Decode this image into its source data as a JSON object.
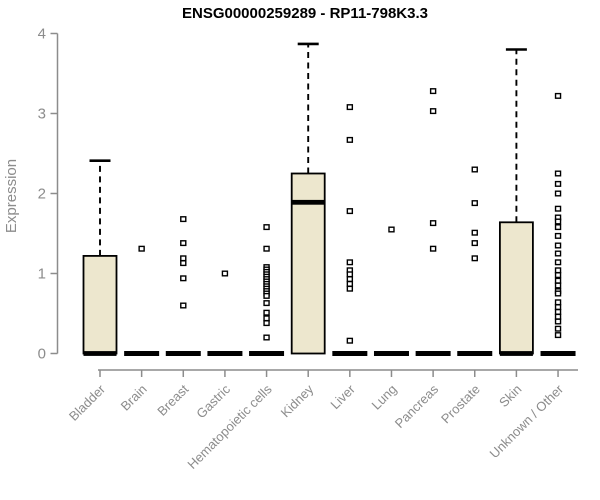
{
  "chart_data": {
    "type": "boxplot",
    "title": "ENSG00000259289 - RP11-798K3.3",
    "ylabel": "Expression",
    "ylim": [
      0,
      4
    ],
    "yticks": [
      0,
      1,
      2,
      3,
      4
    ],
    "grid": false,
    "legend": false,
    "categories": [
      "Bladder",
      "Brain",
      "Breast",
      "Gastric",
      "Hematopoietic cells",
      "Kidney",
      "Liver",
      "Lung",
      "Pancreas",
      "Prostate",
      "Skin",
      "Unknown / Other"
    ],
    "groups": [
      {
        "name": "Bladder",
        "q1": 0,
        "median": 0,
        "q3": 1.22,
        "whisker_low": 0,
        "whisker_high": 2.41,
        "outliers": []
      },
      {
        "name": "Brain",
        "q1": 0,
        "median": 0,
        "q3": 0,
        "whisker_low": 0,
        "whisker_high": 0,
        "outliers": [
          1.31
        ]
      },
      {
        "name": "Breast",
        "q1": 0,
        "median": 0,
        "q3": 0,
        "whisker_low": 0,
        "whisker_high": 0,
        "outliers": [
          1.68,
          1.38,
          1.19,
          1.13,
          0.94,
          0.6
        ]
      },
      {
        "name": "Gastric",
        "q1": 0,
        "median": 0,
        "q3": 0,
        "whisker_low": 0,
        "whisker_high": 0,
        "outliers": [
          1.0
        ]
      },
      {
        "name": "Hematopoietic cells",
        "q1": 0,
        "median": 0,
        "q3": 0,
        "whisker_low": 0,
        "whisker_high": 0,
        "outliers": [
          1.58,
          1.31,
          1.08,
          1.05,
          1.02,
          0.99,
          0.96,
          0.93,
          0.9,
          0.87,
          0.84,
          0.81,
          0.78,
          0.75,
          0.72,
          0.63,
          0.51,
          0.44,
          0.38,
          0.2
        ]
      },
      {
        "name": "Kidney",
        "q1": 0,
        "median": 1.89,
        "q3": 2.25,
        "whisker_low": 0,
        "whisker_high": 3.87,
        "outliers": []
      },
      {
        "name": "Liver",
        "q1": 0,
        "median": 0,
        "q3": 0,
        "whisker_low": 0,
        "whisker_high": 0,
        "outliers": [
          3.08,
          2.67,
          1.78,
          1.14,
          1.04,
          0.99,
          0.93,
          0.87,
          0.81,
          0.16
        ]
      },
      {
        "name": "Lung",
        "q1": 0,
        "median": 0,
        "q3": 0,
        "whisker_low": 0,
        "whisker_high": 0,
        "outliers": [
          1.55
        ]
      },
      {
        "name": "Pancreas",
        "q1": 0,
        "median": 0,
        "q3": 0,
        "whisker_low": 0,
        "whisker_high": 0,
        "outliers": [
          3.28,
          3.03,
          1.63,
          1.31
        ]
      },
      {
        "name": "Prostate",
        "q1": 0,
        "median": 0,
        "q3": 0,
        "whisker_low": 0,
        "whisker_high": 0,
        "outliers": [
          2.3,
          1.88,
          1.51,
          1.38,
          1.19
        ]
      },
      {
        "name": "Skin",
        "q1": 0,
        "median": 0,
        "q3": 1.64,
        "whisker_low": 0,
        "whisker_high": 3.8,
        "outliers": []
      },
      {
        "name": "Unknown / Other",
        "q1": 0,
        "median": 0,
        "q3": 0,
        "whisker_low": 0,
        "whisker_high": 0,
        "outliers": [
          3.22,
          2.25,
          2.12,
          2.0,
          1.81,
          1.7,
          1.65,
          1.58,
          1.47,
          1.35,
          1.25,
          1.14,
          1.04,
          0.98,
          0.91,
          0.85,
          0.78,
          0.75,
          0.64,
          0.58,
          0.52,
          0.46,
          0.4,
          0.31,
          0.23
        ]
      }
    ],
    "colors": {
      "box_fill": "#EDE7CE",
      "box_stroke": "#000000",
      "median": "#000000",
      "whisker": "#000000",
      "outlier_fill": "#FFFFFF",
      "outlier_stroke": "#000000",
      "axis": "#8C8C8C",
      "tick_label": "#8C8C8C",
      "title": "#000000",
      "background": "#FFFFFF"
    }
  }
}
